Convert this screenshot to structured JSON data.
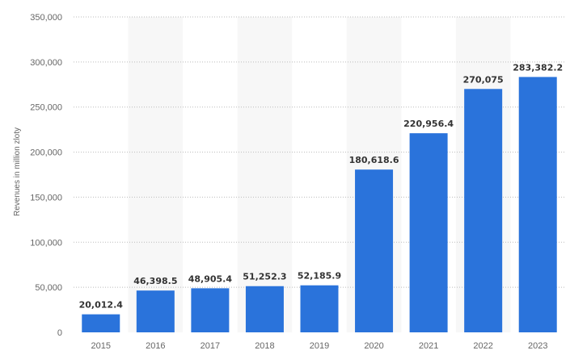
{
  "chart_data": {
    "type": "bar",
    "title": "",
    "xlabel": "",
    "ylabel": "Revenues in million zloty",
    "categories": [
      "2015",
      "2016",
      "2017",
      "2018",
      "2019",
      "2020",
      "2021",
      "2022",
      "2023"
    ],
    "values": [
      20012.4,
      46398.5,
      48905.4,
      51252.3,
      52185.9,
      180618.6,
      220956.4,
      270075,
      283382.2
    ],
    "value_labels": [
      "20,012.4",
      "46,398.5",
      "48,905.4",
      "51,252.3",
      "52,185.9",
      "180,618.6",
      "220,956.4",
      "270,075",
      "283,382.2"
    ],
    "yticks": [
      0,
      50000,
      100000,
      150000,
      200000,
      250000,
      300000,
      350000
    ],
    "ytick_labels": [
      "0",
      "50,000",
      "100,000",
      "150,000",
      "200,000",
      "250,000",
      "300,000",
      "350,000"
    ],
    "ylim": [
      0,
      350000
    ],
    "grid": true,
    "legend": "none",
    "bar_color": "#2a73db",
    "band_color": "#f7f7f7",
    "grid_color": "#bbbbbb"
  }
}
